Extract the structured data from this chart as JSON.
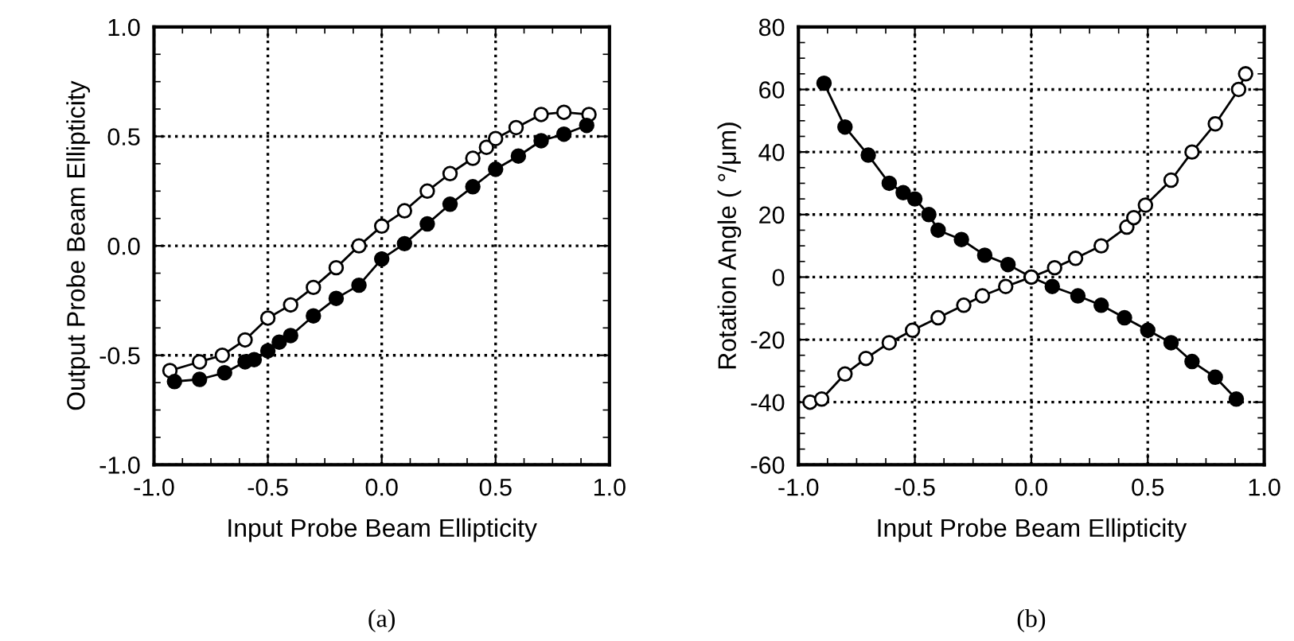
{
  "chart_data": [
    {
      "type": "line",
      "xlabel": "Input Probe Beam Ellipticity",
      "ylabel": "Output Probe Beam Ellipticity",
      "annotations": [
        "(a)"
      ],
      "xlim": [
        -1.0,
        1.0
      ],
      "xticks": [
        {
          "value": -1.0,
          "label": "-1.0"
        },
        {
          "value": -0.5,
          "label": "-0.5"
        },
        {
          "value": 0.0,
          "label": "0.0"
        },
        {
          "value": 0.5,
          "label": "0.5"
        },
        {
          "value": 1.0,
          "label": "1.0"
        }
      ],
      "ylim": [
        -1.0,
        1.0
      ],
      "yticks": [
        {
          "value": -1.0,
          "label": "-1.0"
        },
        {
          "value": -0.5,
          "label": "-0.5"
        },
        {
          "value": 0.0,
          "label": "0.0"
        },
        {
          "value": 0.5,
          "label": "0.5"
        },
        {
          "value": 1.0,
          "label": "1.0"
        }
      ],
      "grid": true,
      "marker": "circle",
      "line_style": "solid",
      "series": [
        {
          "color": "#ffffff",
          "x": [
            -0.93,
            -0.8,
            -0.7,
            -0.6,
            -0.5,
            -0.4,
            -0.3,
            -0.2,
            -0.1,
            0.0,
            0.1,
            0.2,
            0.3,
            0.4,
            0.46,
            0.5,
            0.59,
            0.7,
            0.8,
            0.91
          ],
          "values": [
            -0.57,
            -0.53,
            -0.5,
            -0.43,
            -0.33,
            -0.27,
            -0.19,
            -0.1,
            0.0,
            0.09,
            0.16,
            0.25,
            0.33,
            0.4,
            0.45,
            0.49,
            0.54,
            0.6,
            0.61,
            0.6
          ]
        },
        {
          "color": "#000000",
          "x": [
            -0.91,
            -0.8,
            -0.69,
            -0.6,
            -0.56,
            -0.5,
            -0.45,
            -0.4,
            -0.3,
            -0.2,
            -0.1,
            0.0,
            0.1,
            0.2,
            0.3,
            0.4,
            0.5,
            0.6,
            0.7,
            0.8,
            0.9
          ],
          "values": [
            -0.62,
            -0.61,
            -0.58,
            -0.53,
            -0.52,
            -0.48,
            -0.44,
            -0.41,
            -0.32,
            -0.24,
            -0.18,
            -0.06,
            0.01,
            0.1,
            0.19,
            0.27,
            0.35,
            0.41,
            0.48,
            0.51,
            0.55
          ]
        }
      ]
    },
    {
      "type": "line",
      "xlabel": "Input Probe Beam Ellipticity",
      "ylabel": "Rotation Angle ( °/μm)",
      "annotations": [
        "(b)"
      ],
      "xlim": [
        -1.0,
        1.0
      ],
      "xticks": [
        {
          "value": -1.0,
          "label": "-1.0"
        },
        {
          "value": -0.5,
          "label": "-0.5"
        },
        {
          "value": 0.0,
          "label": "0.0"
        },
        {
          "value": 0.5,
          "label": "0.5"
        },
        {
          "value": 1.0,
          "label": "1.0"
        }
      ],
      "ylim": [
        -60,
        80
      ],
      "yticks": [
        -60,
        -40,
        -20,
        0,
        20,
        40,
        60,
        80
      ],
      "grid": true,
      "marker": "circle",
      "line_style": "solid",
      "series": [
        {
          "color": "#000000",
          "x": [
            -0.89,
            -0.8,
            -0.7,
            -0.61,
            -0.55,
            -0.5,
            -0.44,
            -0.4,
            -0.3,
            -0.2,
            -0.1,
            0.0,
            0.09,
            0.2,
            0.3,
            0.4,
            0.5,
            0.6,
            0.69,
            0.79,
            0.88
          ],
          "values": [
            62,
            48,
            39,
            30,
            27,
            25,
            20,
            15,
            12,
            7,
            4,
            0,
            -3,
            -6,
            -9,
            -13,
            -17,
            -21,
            -27,
            -32,
            -39
          ]
        },
        {
          "color": "#ffffff",
          "x": [
            -0.95,
            -0.9,
            -0.8,
            -0.71,
            -0.61,
            -0.51,
            -0.4,
            -0.29,
            -0.21,
            -0.11,
            0.0,
            0.1,
            0.19,
            0.3,
            0.41,
            0.44,
            0.49,
            0.6,
            0.69,
            0.79,
            0.89,
            0.92
          ],
          "values": [
            -40,
            -39,
            -31,
            -26,
            -21,
            -17,
            -13,
            -9,
            -6,
            -3,
            0,
            3,
            6,
            10,
            16,
            19,
            23,
            31,
            40,
            49,
            60,
            65
          ]
        }
      ]
    }
  ]
}
